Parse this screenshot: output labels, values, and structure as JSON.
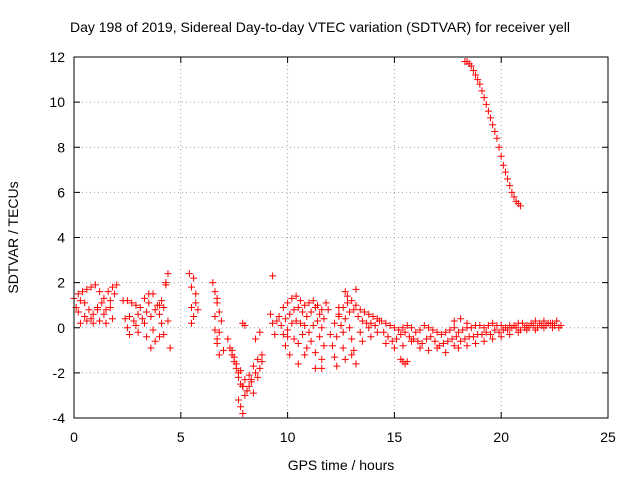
{
  "chart_data": {
    "type": "scatter",
    "title": "Day 198 of 2019, Sidereal Day-to-day VTEC variation (SDTVAR) for receiver yell",
    "xlabel": "GPS time / hours",
    "ylabel": "SDTVAR / TECUs",
    "xlim": [
      0,
      25
    ],
    "ylim": [
      -4,
      12
    ],
    "xticks": [
      0,
      5,
      10,
      15,
      20,
      25
    ],
    "yticks": [
      -4,
      -2,
      0,
      2,
      4,
      6,
      8,
      10,
      12
    ],
    "grid": true,
    "marker": "+",
    "series": [
      {
        "name": "SDTVAR",
        "color": "#ff0000",
        "x": [
          0.0,
          0.2,
          0.4,
          0.6,
          0.8,
          1.0,
          1.2,
          1.4,
          1.6,
          1.8,
          2.0,
          0.1,
          0.3,
          0.5,
          0.7,
          0.9,
          1.1,
          1.3,
          1.5,
          1.7,
          1.9,
          0.2,
          0.5,
          0.8,
          1.1,
          1.4,
          1.7,
          0.3,
          0.6,
          0.9,
          1.2,
          1.5,
          1.8,
          2.3,
          2.5,
          2.7,
          2.9,
          3.1,
          3.3,
          3.5,
          3.7,
          3.9,
          4.1,
          4.3,
          2.4,
          2.6,
          2.8,
          3.0,
          3.2,
          3.4,
          3.6,
          3.8,
          4.0,
          4.2,
          4.4,
          2.5,
          2.9,
          3.3,
          3.7,
          4.1,
          2.6,
          3.0,
          3.4,
          3.8,
          4.2,
          3.6,
          4.0,
          4.5,
          4.4,
          3.5,
          4.0,
          4.3,
          5.4,
          5.5,
          5.6,
          5.7,
          5.5,
          5.6,
          5.8,
          5.5,
          5.7,
          6.5,
          6.6,
          6.7,
          6.8,
          6.9,
          6.6,
          6.7,
          6.8,
          6.6,
          6.8,
          6.7,
          6.7,
          7.0,
          7.2,
          7.4,
          7.6,
          7.8,
          8.0,
          8.2,
          8.4,
          8.6,
          8.8,
          7.3,
          7.5,
          7.7,
          7.9,
          8.1,
          8.3,
          8.5,
          8.7,
          7.4,
          7.6,
          7.8,
          8.0,
          8.2,
          8.4,
          8.6,
          7.5,
          7.7,
          7.9,
          8.1,
          8.3,
          7.8,
          7.9,
          7.7,
          8.0,
          8.5,
          8.7,
          8.8,
          7.9,
          9.3,
          9.2,
          9.3,
          9.4,
          9.5,
          9.6,
          9.8,
          10.0,
          10.2,
          10.4,
          10.6,
          10.8,
          11.0,
          11.2,
          11.4,
          11.6,
          11.8,
          9.7,
          9.9,
          10.1,
          10.3,
          10.5,
          10.7,
          10.9,
          11.1,
          11.3,
          11.5,
          11.7,
          11.9,
          9.8,
          10.0,
          10.2,
          10.4,
          10.6,
          10.8,
          11.0,
          11.2,
          11.4,
          11.6,
          9.9,
          10.3,
          10.7,
          11.1,
          11.5,
          10.1,
          10.5,
          10.9,
          11.3,
          11.7,
          10.5,
          10.8,
          11.3,
          11.6,
          12.4,
          12.6,
          10.0,
          11.6,
          12.0,
          12.2,
          12.4,
          12.6,
          12.8,
          13.0,
          13.2,
          13.4,
          13.6,
          13.8,
          14.0,
          14.2,
          12.1,
          12.3,
          12.5,
          12.7,
          12.9,
          13.1,
          13.3,
          13.5,
          13.7,
          13.9,
          14.1,
          14.3,
          12.2,
          12.6,
          13.0,
          13.4,
          13.8,
          14.2,
          12.3,
          12.7,
          13.1,
          13.5,
          13.9,
          12.4,
          12.8,
          12.7,
          13.2,
          13.0,
          13.2,
          12.9,
          14.4,
          14.6,
          14.8,
          15.0,
          15.2,
          15.4,
          15.6,
          15.8,
          16.0,
          16.2,
          16.4,
          16.6,
          16.8,
          17.0,
          17.2,
          17.4,
          17.6,
          17.8,
          14.5,
          14.7,
          14.9,
          15.1,
          15.3,
          15.5,
          15.7,
          15.9,
          16.1,
          16.3,
          16.5,
          16.7,
          16.9,
          17.1,
          17.3,
          17.5,
          17.7,
          17.9,
          14.6,
          15.0,
          15.4,
          15.8,
          16.2,
          16.6,
          17.0,
          17.4,
          17.8,
          15.3,
          15.4,
          15.5,
          15.6,
          18.0,
          18.2,
          18.4,
          18.6,
          18.8,
          19.0,
          19.2,
          19.4,
          19.6,
          19.8,
          20.0,
          20.2,
          20.4,
          20.6,
          20.8,
          21.0,
          21.2,
          21.4,
          21.6,
          21.8,
          22.0,
          22.2,
          22.4,
          22.6,
          22.8,
          18.1,
          18.3,
          18.5,
          18.7,
          18.9,
          19.1,
          19.3,
          19.5,
          19.7,
          19.9,
          20.1,
          20.3,
          20.5,
          20.7,
          20.9,
          21.1,
          21.3,
          21.5,
          21.7,
          21.9,
          22.1,
          22.3,
          22.5,
          22.7,
          18.0,
          18.4,
          18.8,
          19.2,
          19.6,
          20.0,
          20.4,
          20.8,
          21.2,
          21.6,
          22.0,
          22.4,
          17.8,
          18.1,
          18.4,
          18.3,
          18.4,
          18.5,
          18.6,
          18.7,
          18.8,
          18.9,
          19.0,
          19.1,
          19.2,
          19.3,
          19.4,
          19.5,
          19.6,
          19.7,
          19.8,
          19.9,
          20.0,
          20.1,
          20.2,
          20.3,
          20.4,
          20.5,
          20.6,
          20.7,
          20.8,
          20.9
        ],
        "y": [
          1.3,
          1.5,
          1.6,
          1.7,
          1.8,
          1.9,
          1.6,
          1.3,
          1.6,
          1.8,
          1.9,
          0.9,
          1.2,
          1.1,
          0.8,
          0.6,
          0.9,
          1.1,
          0.8,
          1.2,
          1.5,
          0.7,
          0.5,
          0.4,
          0.8,
          0.6,
          0.9,
          0.2,
          0.3,
          0.2,
          0.3,
          0.2,
          0.4,
          1.2,
          1.2,
          1.1,
          1.0,
          0.9,
          1.3,
          1.1,
          1.5,
          1.0,
          1.2,
          1.9,
          0.4,
          0.5,
          0.3,
          0.6,
          0.4,
          0.7,
          0.5,
          0.8,
          0.6,
          0.9,
          0.3,
          0.0,
          0.1,
          0.2,
          -0.1,
          0.2,
          -0.3,
          -0.2,
          -0.4,
          -0.6,
          -0.3,
          -0.9,
          -0.4,
          -0.9,
          2.4,
          1.5,
          1.0,
          2.0,
          2.4,
          1.8,
          2.2,
          1.5,
          0.9,
          0.5,
          0.8,
          0.2,
          1.1,
          2.0,
          1.6,
          1.1,
          0.7,
          0.3,
          -0.1,
          -0.5,
          -1.2,
          0.5,
          -0.2,
          1.3,
          -0.7,
          -1.0,
          -0.5,
          -1.0,
          -1.6,
          -1.9,
          -2.3,
          -2.1,
          -1.7,
          -1.4,
          -1.5,
          -0.9,
          -1.5,
          -2.2,
          -2.6,
          -2.8,
          -2.4,
          -2.0,
          -1.8,
          -1.2,
          -1.8,
          -2.5,
          -3.0,
          -2.6,
          -2.9,
          -2.2,
          -1.3,
          -2.0,
          -2.6,
          -2.8,
          -2.3,
          -3.5,
          -3.8,
          -3.2,
          0.1,
          -0.5,
          -0.2,
          -1.2,
          0.2,
          2.3,
          0.6,
          0.2,
          -0.3,
          0.3,
          0.5,
          0.9,
          1.1,
          1.3,
          1.4,
          1.2,
          1.0,
          1.1,
          1.2,
          1.0,
          0.8,
          1.1,
          0.1,
          0.4,
          0.6,
          0.8,
          0.9,
          0.7,
          0.5,
          0.7,
          0.9,
          0.6,
          0.4,
          0.8,
          -0.3,
          -0.1,
          0.2,
          0.3,
          0.2,
          0.1,
          -0.2,
          0.1,
          0.3,
          0.0,
          -0.8,
          -0.5,
          -0.3,
          -0.6,
          -0.4,
          -1.2,
          -0.7,
          -0.9,
          -1.1,
          -0.8,
          -1.6,
          -1.2,
          -1.8,
          -1.4,
          0.5,
          -0.2,
          -0.4,
          -1.8,
          -0.3,
          0.2,
          0.6,
          0.9,
          1.1,
          1.2,
          1.0,
          0.8,
          0.7,
          0.6,
          0.5,
          0.4,
          -0.8,
          -0.4,
          0.1,
          0.4,
          0.7,
          0.8,
          0.5,
          0.3,
          0.2,
          0.2,
          0.1,
          0.3,
          -1.3,
          -0.9,
          -0.5,
          -0.2,
          0.0,
          -0.2,
          -1.7,
          -1.4,
          -1.0,
          -0.6,
          -0.4,
          0.9,
          1.4,
          1.6,
          1.7,
          -1.2,
          -1.6,
          0.0,
          0.3,
          0.2,
          0.1,
          0.0,
          -0.1,
          0.0,
          0.1,
          0.0,
          -0.2,
          -0.1,
          0.1,
          0.0,
          -0.1,
          -0.2,
          -0.3,
          -0.2,
          -0.1,
          0.0,
          -0.2,
          -0.4,
          -0.6,
          -0.5,
          -0.3,
          -0.2,
          -0.4,
          -0.5,
          -0.6,
          -0.7,
          -0.5,
          -0.4,
          -0.6,
          -0.8,
          -0.7,
          -0.6,
          -0.5,
          -0.4,
          -0.7,
          -0.9,
          -0.8,
          -0.6,
          -0.9,
          -1.0,
          -0.9,
          -1.1,
          -0.8,
          -1.4,
          -1.5,
          -1.6,
          -1.5,
          -0.2,
          -0.1,
          0.0,
          0.0,
          0.1,
          0.1,
          0.0,
          0.1,
          0.2,
          0.1,
          0.1,
          0.0,
          0.1,
          0.1,
          0.2,
          0.2,
          0.1,
          0.2,
          0.3,
          0.2,
          0.3,
          0.2,
          0.2,
          0.3,
          0.1,
          -0.6,
          -0.5,
          -0.4,
          -0.4,
          -0.3,
          -0.3,
          -0.2,
          -0.3,
          -0.1,
          -0.2,
          -0.1,
          -0.1,
          0.0,
          0.0,
          -0.1,
          0.0,
          0.0,
          0.1,
          0.0,
          0.1,
          0.1,
          0.2,
          0.1,
          0.0,
          -0.9,
          -0.8,
          -0.7,
          -0.6,
          -0.5,
          -0.4,
          -0.3,
          -0.2,
          -0.1,
          -0.1,
          0.0,
          0.0,
          0.3,
          0.4,
          0.2,
          11.8,
          11.8,
          11.7,
          11.6,
          11.4,
          11.2,
          11.0,
          10.8,
          10.5,
          10.2,
          9.9,
          9.6,
          9.3,
          9.0,
          8.7,
          8.4,
          8.0,
          7.6,
          7.2,
          6.9,
          6.6,
          6.3,
          6.0,
          5.8,
          5.6,
          5.5,
          5.4
        ]
      }
    ]
  }
}
